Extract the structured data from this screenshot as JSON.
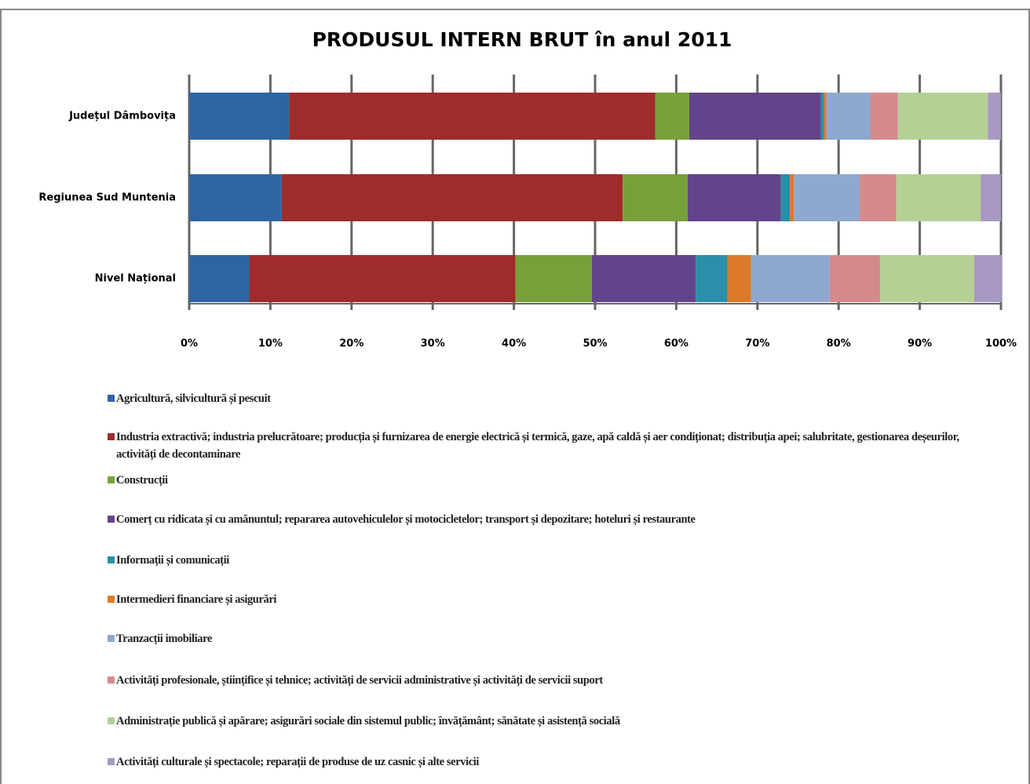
{
  "chart_data": {
    "type": "stacked-barh",
    "title": "PRODUSUL INTERN BRUT în anul 2011",
    "categories": [
      "Județul Dâmbovița",
      "Regiunea Sud Muntenia",
      "Nivel Național"
    ],
    "series": [
      {
        "name": "Agricultură, silvicultură și pescuit",
        "color": "#2e64a4",
        "values": [
          12.3,
          11.4,
          7.4
        ]
      },
      {
        "name": "Industria extractivă; industria prelucrătoare; producția și furnizarea de energie electrică și termică, gaze, apă caldă și aer condiționat; distribuția apei; salubritate, gestionarea deșeurilor, activități de decontaminare",
        "color": "#a02b2b",
        "values": [
          45.1,
          42.0,
          32.8
        ]
      },
      {
        "name": "Construcții",
        "color": "#77a03a",
        "values": [
          4.2,
          8.0,
          9.4
        ]
      },
      {
        "name": "Comerț cu ridicata și cu amănuntul; repararea autovehiculelor și motocicletelor; transport și depozitare; hoteluri și restaurante",
        "color": "#63438a",
        "values": [
          16.2,
          11.5,
          12.8
        ]
      },
      {
        "name": "Informații și comunicații",
        "color": "#2a8fa8",
        "values": [
          0.4,
          1.1,
          3.9
        ]
      },
      {
        "name": "Intermedieri financiare și asigurări",
        "color": "#dc7a2a",
        "values": [
          0.3,
          0.5,
          2.9
        ]
      },
      {
        "name": "Tranzacții imobiliare",
        "color": "#8fa8d0",
        "values": [
          5.4,
          8.1,
          9.7
        ]
      },
      {
        "name": "Activități profesionale, științifice și tehnice; activități de servicii administrative și activități de servicii suport",
        "color": "#d48a8a",
        "values": [
          3.4,
          4.5,
          6.2
        ]
      },
      {
        "name": "Administrație publică și apărare; asigurări sociale din sistemul public; învățământ; sănătate și asistență socială",
        "color": "#b5d095",
        "values": [
          11.1,
          10.4,
          11.6
        ]
      },
      {
        "name": "Activități culturale și spectacole; reparații de produse de uz casnic și alte servicii",
        "color": "#a898c4",
        "values": [
          1.6,
          2.5,
          3.4
        ]
      }
    ],
    "xlim": [
      0,
      100
    ],
    "xticks": [
      {
        "value": 0,
        "label": "0%"
      },
      {
        "value": 10,
        "label": "10%"
      },
      {
        "value": 20,
        "label": "20%"
      },
      {
        "value": 30,
        "label": "30%"
      },
      {
        "value": 40,
        "label": "40%"
      },
      {
        "value": 50,
        "label": "50%"
      },
      {
        "value": 60,
        "label": "60%"
      },
      {
        "value": 70,
        "label": "70%"
      },
      {
        "value": 80,
        "label": "80%"
      },
      {
        "value": 90,
        "label": "90%"
      },
      {
        "value": 100,
        "label": "100%"
      }
    ],
    "grid": true
  }
}
